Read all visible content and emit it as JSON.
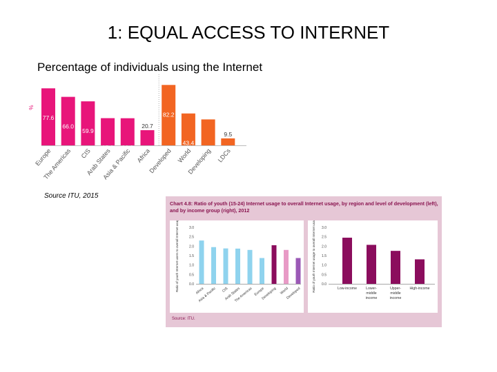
{
  "slide": {
    "title": "1: EQUAL ACCESS TO INTERNET",
    "subtitle": "Percentage of individuals using the Internet",
    "source": "Source ITU, 2015"
  },
  "inset": {
    "title": "Chart 4.8: Ratio of youth (15-24) Internet usage to overall Internet usage, by region and level of development (left), and by income group (right), 2012",
    "source": "Source: ITU."
  },
  "colors": {
    "magenta": "#e8157a",
    "orange": "#f26522",
    "light_blue": "#8fd3ee",
    "purple_dark": "#8b0d5d",
    "pink_light": "#e89ac6",
    "purple": "#9b59b6",
    "panel_bg": "#e6c7d6"
  },
  "chart_data": [
    {
      "type": "bar",
      "ylabel": "%",
      "categories": [
        "Europe",
        "The Americas",
        "CIS",
        "Arab States",
        "Asia & Pacific",
        "Africa",
        "Developed",
        "World",
        "Developing",
        "LDCs"
      ],
      "values": [
        77.6,
        66.0,
        59.9,
        37.0,
        36.9,
        20.7,
        82.2,
        43.4,
        35.3,
        9.5
      ],
      "value_labels": [
        "77.6",
        "66.0",
        "59.9",
        "37.0",
        "36.9",
        "20.7",
        "82.2",
        "43.4",
        "35.3",
        "9.5"
      ],
      "bar_colors": [
        "magenta",
        "magenta",
        "magenta",
        "magenta",
        "magenta",
        "magenta",
        "orange",
        "orange",
        "orange",
        "orange"
      ],
      "ylim": [
        0,
        90
      ]
    },
    {
      "type": "bar",
      "ylabel": "Ratio of youth Internet users to overall Internet usage",
      "categories": [
        "Africa",
        "Asia & Pacific",
        "CIS",
        "Arab States",
        "The Americas",
        "Europe",
        "Developing",
        "World",
        "Developed"
      ],
      "values": [
        2.3,
        1.95,
        1.88,
        1.87,
        1.8,
        1.37,
        2.05,
        1.8,
        1.37
      ],
      "bar_colors": [
        "light_blue",
        "light_blue",
        "light_blue",
        "light_blue",
        "light_blue",
        "light_blue",
        "purple_dark",
        "pink_light",
        "purple"
      ],
      "ylim": [
        0,
        3.0
      ],
      "yticks": [
        "0.0",
        "0.5",
        "1.0",
        "1.5",
        "2.0",
        "2.5",
        "3.0"
      ]
    },
    {
      "type": "bar",
      "ylabel": "Ratio of youth Internet usage to overall Internet usage",
      "categories": [
        "Low-income",
        "Lower-middle income",
        "Upper-middle income",
        "High-income"
      ],
      "values": [
        2.45,
        2.07,
        1.75,
        1.3
      ],
      "bar_colors": [
        "purple_dark",
        "purple_dark",
        "purple_dark",
        "purple_dark"
      ],
      "ylim": [
        0,
        3.0
      ],
      "yticks": [
        "0.0",
        "0.5",
        "1.0",
        "1.5",
        "2.0",
        "2.5",
        "3.0"
      ]
    }
  ]
}
